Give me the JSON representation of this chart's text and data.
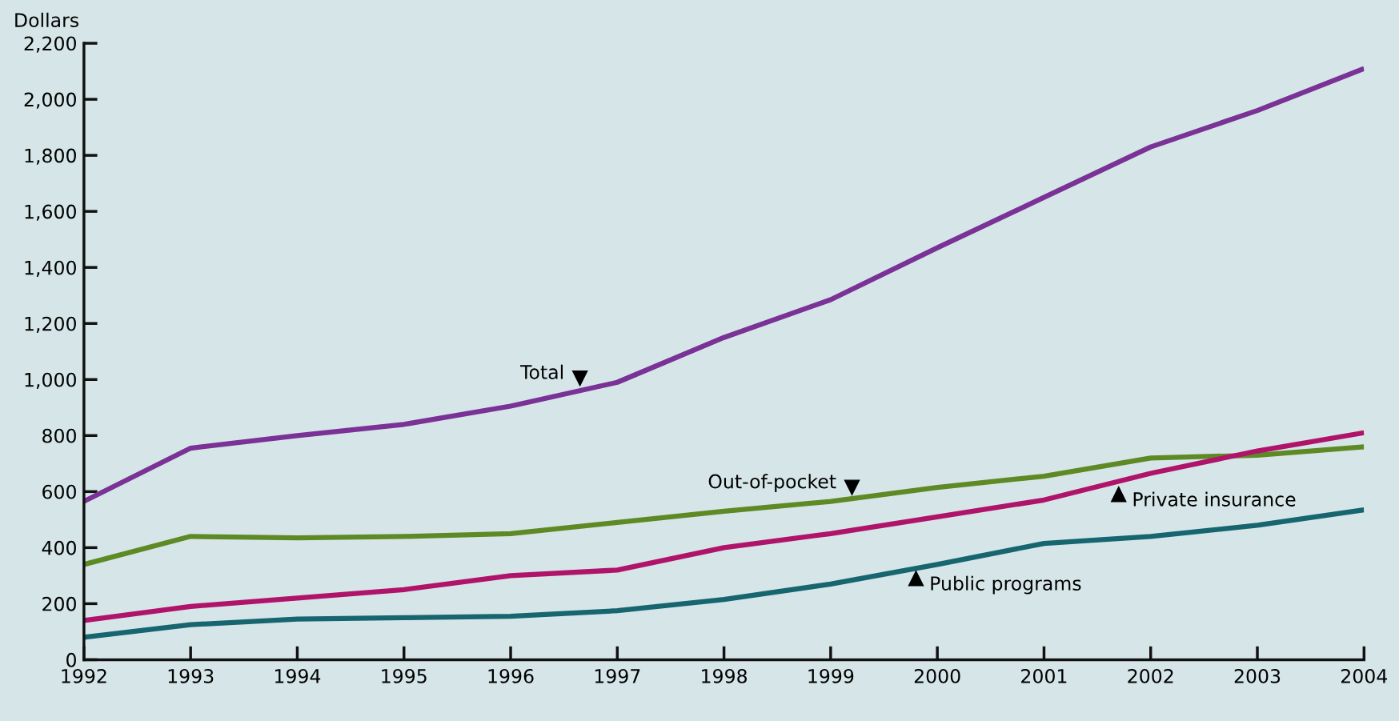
{
  "chart_data": {
    "type": "line",
    "ylabel": "Dollars",
    "x": [
      1992,
      1993,
      1994,
      1995,
      1996,
      1997,
      1998,
      1999,
      2000,
      2001,
      2002,
      2003,
      2004
    ],
    "series": [
      {
        "color": "#7a3296",
        "values": [
          565,
          755,
          800,
          840,
          905,
          990,
          1150,
          1285,
          1470,
          1650,
          1830,
          1960,
          2110
        ]
      },
      {
        "color": "#5e8a26",
        "values": [
          340,
          440,
          435,
          440,
          450,
          490,
          530,
          565,
          615,
          655,
          720,
          730,
          760
        ]
      },
      {
        "color": "#b0146a",
        "values": [
          140,
          190,
          220,
          250,
          300,
          320,
          400,
          450,
          510,
          570,
          665,
          745,
          810
        ]
      },
      {
        "color": "#17656f",
        "values": [
          80,
          125,
          145,
          150,
          155,
          175,
          215,
          270,
          340,
          415,
          440,
          480,
          535
        ]
      }
    ],
    "annotations": [
      {
        "text": "Total",
        "x": 1996.65,
        "y": 965
      },
      {
        "text": "Out-of-pocket",
        "x": 1999.2,
        "y": 575
      },
      {
        "text": "Private insurance",
        "x": 2001.7,
        "y": 630
      },
      {
        "text": "Public programs",
        "x": 1999.8,
        "y": 330
      }
    ],
    "xlim": [
      1992,
      2004
    ],
    "ylim": [
      0,
      2200
    ],
    "xticks": [
      1992,
      1993,
      1994,
      1995,
      1996,
      1997,
      1998,
      1999,
      2000,
      2001,
      2002,
      2003,
      2004
    ],
    "yticks": [
      {
        "value": 0,
        "label": "0"
      },
      {
        "value": 200,
        "label": "200"
      },
      {
        "value": 400,
        "label": "400"
      },
      {
        "value": 600,
        "label": "600"
      },
      {
        "value": 800,
        "label": "800"
      },
      {
        "value": 1000,
        "label": "1,000"
      },
      {
        "value": 1200,
        "label": "1,200"
      },
      {
        "value": 1400,
        "label": "1,400"
      },
      {
        "value": 1600,
        "label": "1,600"
      },
      {
        "value": 1800,
        "label": "1,800"
      },
      {
        "value": 2000,
        "label": "2,000"
      },
      {
        "value": 2200,
        "label": "2,200"
      }
    ],
    "grid": false,
    "marker": "none",
    "line_style": "solid"
  }
}
